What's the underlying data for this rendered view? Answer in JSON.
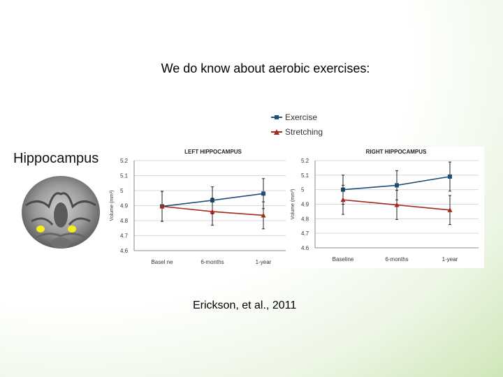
{
  "slide": {
    "title": "We do know about aerobic exercises:",
    "citation": "Erickson, et al., 2011"
  },
  "brain_panel": {
    "label": "Hippocampus"
  },
  "legend": {
    "items": [
      {
        "name": "Exercise",
        "color": "#1f4e79",
        "marker": "square"
      },
      {
        "name": "Stretching",
        "color": "#a52a1a",
        "marker": "triangle"
      }
    ]
  },
  "chart_data": [
    {
      "type": "line",
      "title": "LEFT HIPPOCAMPUS",
      "ylabel": "Volume (mm³)",
      "categories": [
        "Basel ne",
        "6-months",
        "1-year"
      ],
      "ylim": [
        4.6,
        5.2
      ],
      "yticks": [
        "4.6",
        "4.7",
        "4.8",
        "4.9",
        "5",
        "5.1",
        "5.2"
      ],
      "series": [
        {
          "name": "Exercise",
          "values": [
            4.895,
            4.935,
            4.98
          ],
          "err": [
            0.1,
            0.09,
            0.1
          ],
          "color": "#1f4e79"
        },
        {
          "name": "Stretching",
          "values": [
            4.895,
            4.86,
            4.835
          ],
          "err": [
            0.1,
            0.09,
            0.09
          ],
          "color": "#a52a1a"
        }
      ]
    },
    {
      "type": "line",
      "title": "RIGHT HIPPOCAMPUS",
      "ylabel": "Volume (mm³)",
      "categories": [
        "Baseline",
        "6-months",
        "1-year"
      ],
      "ylim": [
        4.6,
        5.2
      ],
      "yticks": [
        "4.6",
        "4.7",
        "4.8",
        "4.9",
        "5",
        "5.1",
        "5.2"
      ],
      "series": [
        {
          "name": "Exercise",
          "values": [
            5.0,
            5.03,
            5.09
          ],
          "err": [
            0.1,
            0.1,
            0.1
          ],
          "color": "#1f4e79"
        },
        {
          "name": "Stretching",
          "values": [
            4.93,
            4.895,
            4.86
          ],
          "err": [
            0.1,
            0.1,
            0.1
          ],
          "color": "#a52a1a"
        }
      ]
    }
  ]
}
